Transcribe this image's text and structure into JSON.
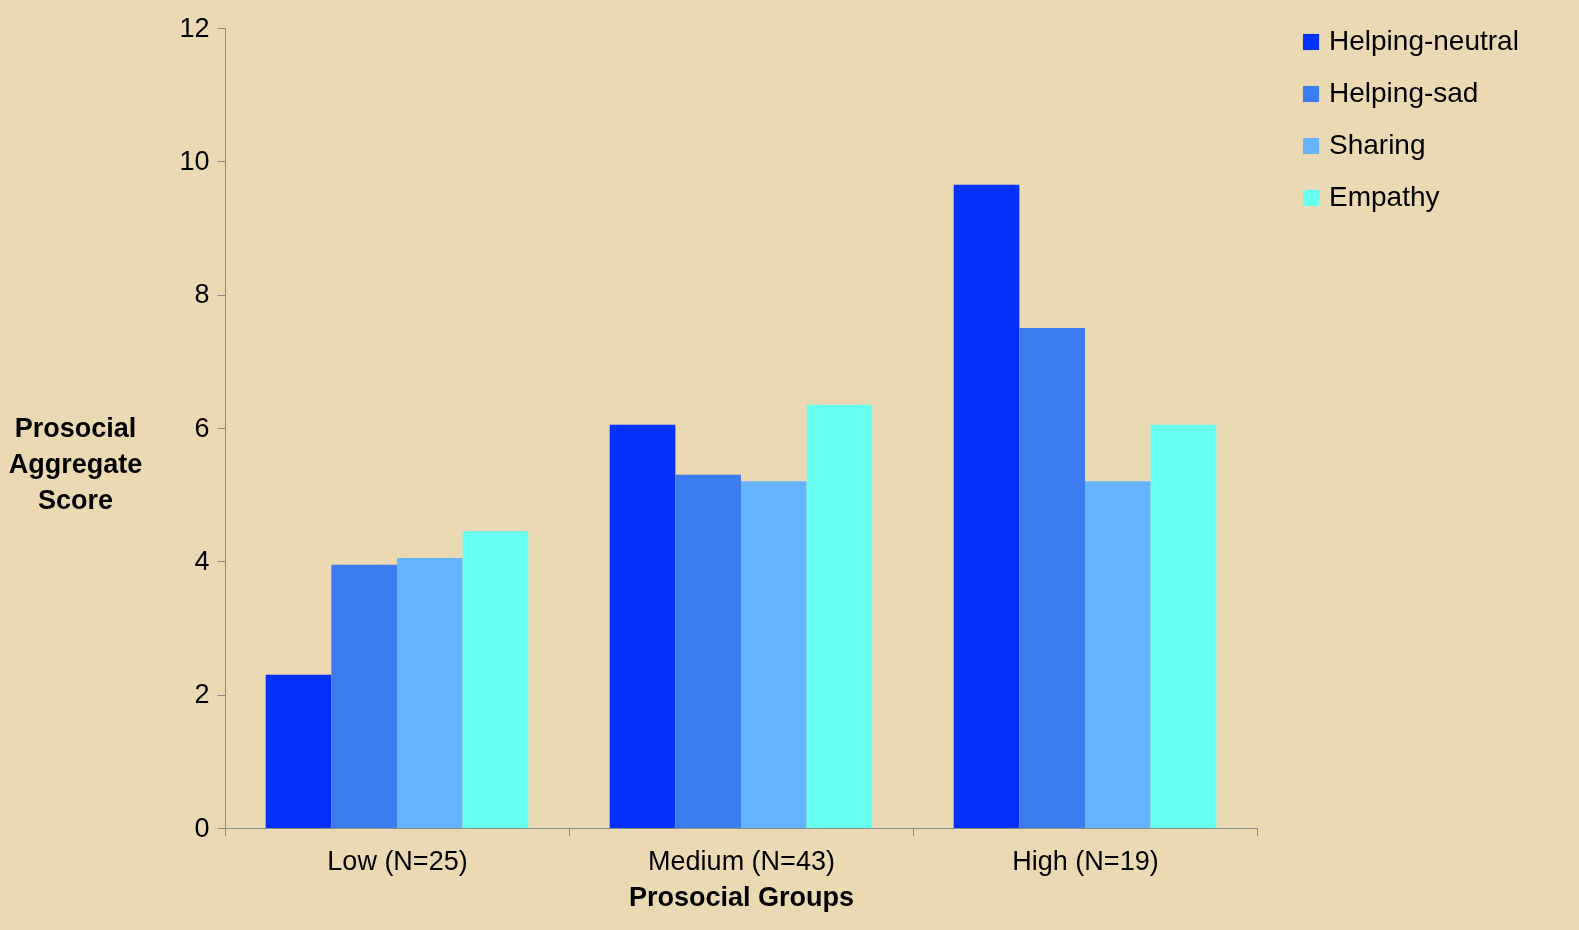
{
  "chart_data": {
    "type": "bar",
    "xlabel": "Prosocial Groups",
    "ylabel": "Prosocial Aggregate Score",
    "categories": [
      "Low (N=25)",
      "Medium (N=43)",
      "High (N=19)"
    ],
    "series": [
      {
        "name": "Helping-neutral",
        "color": "#0433ff",
        "values": [
          2.3,
          6.05,
          9.65
        ]
      },
      {
        "name": "Helping-sad",
        "color": "#3c7cf0",
        "values": [
          3.95,
          5.3,
          7.5
        ]
      },
      {
        "name": "Sharing",
        "color": "#66b3ff",
        "values": [
          4.05,
          5.2,
          5.2
        ]
      },
      {
        "name": "Empathy",
        "color": "#66fff0",
        "values": [
          4.45,
          6.35,
          6.05
        ]
      }
    ],
    "ylim": [
      0,
      12
    ],
    "yticks": [
      0,
      2,
      4,
      6,
      8,
      10,
      12
    ],
    "grid": false,
    "legend": "right"
  }
}
